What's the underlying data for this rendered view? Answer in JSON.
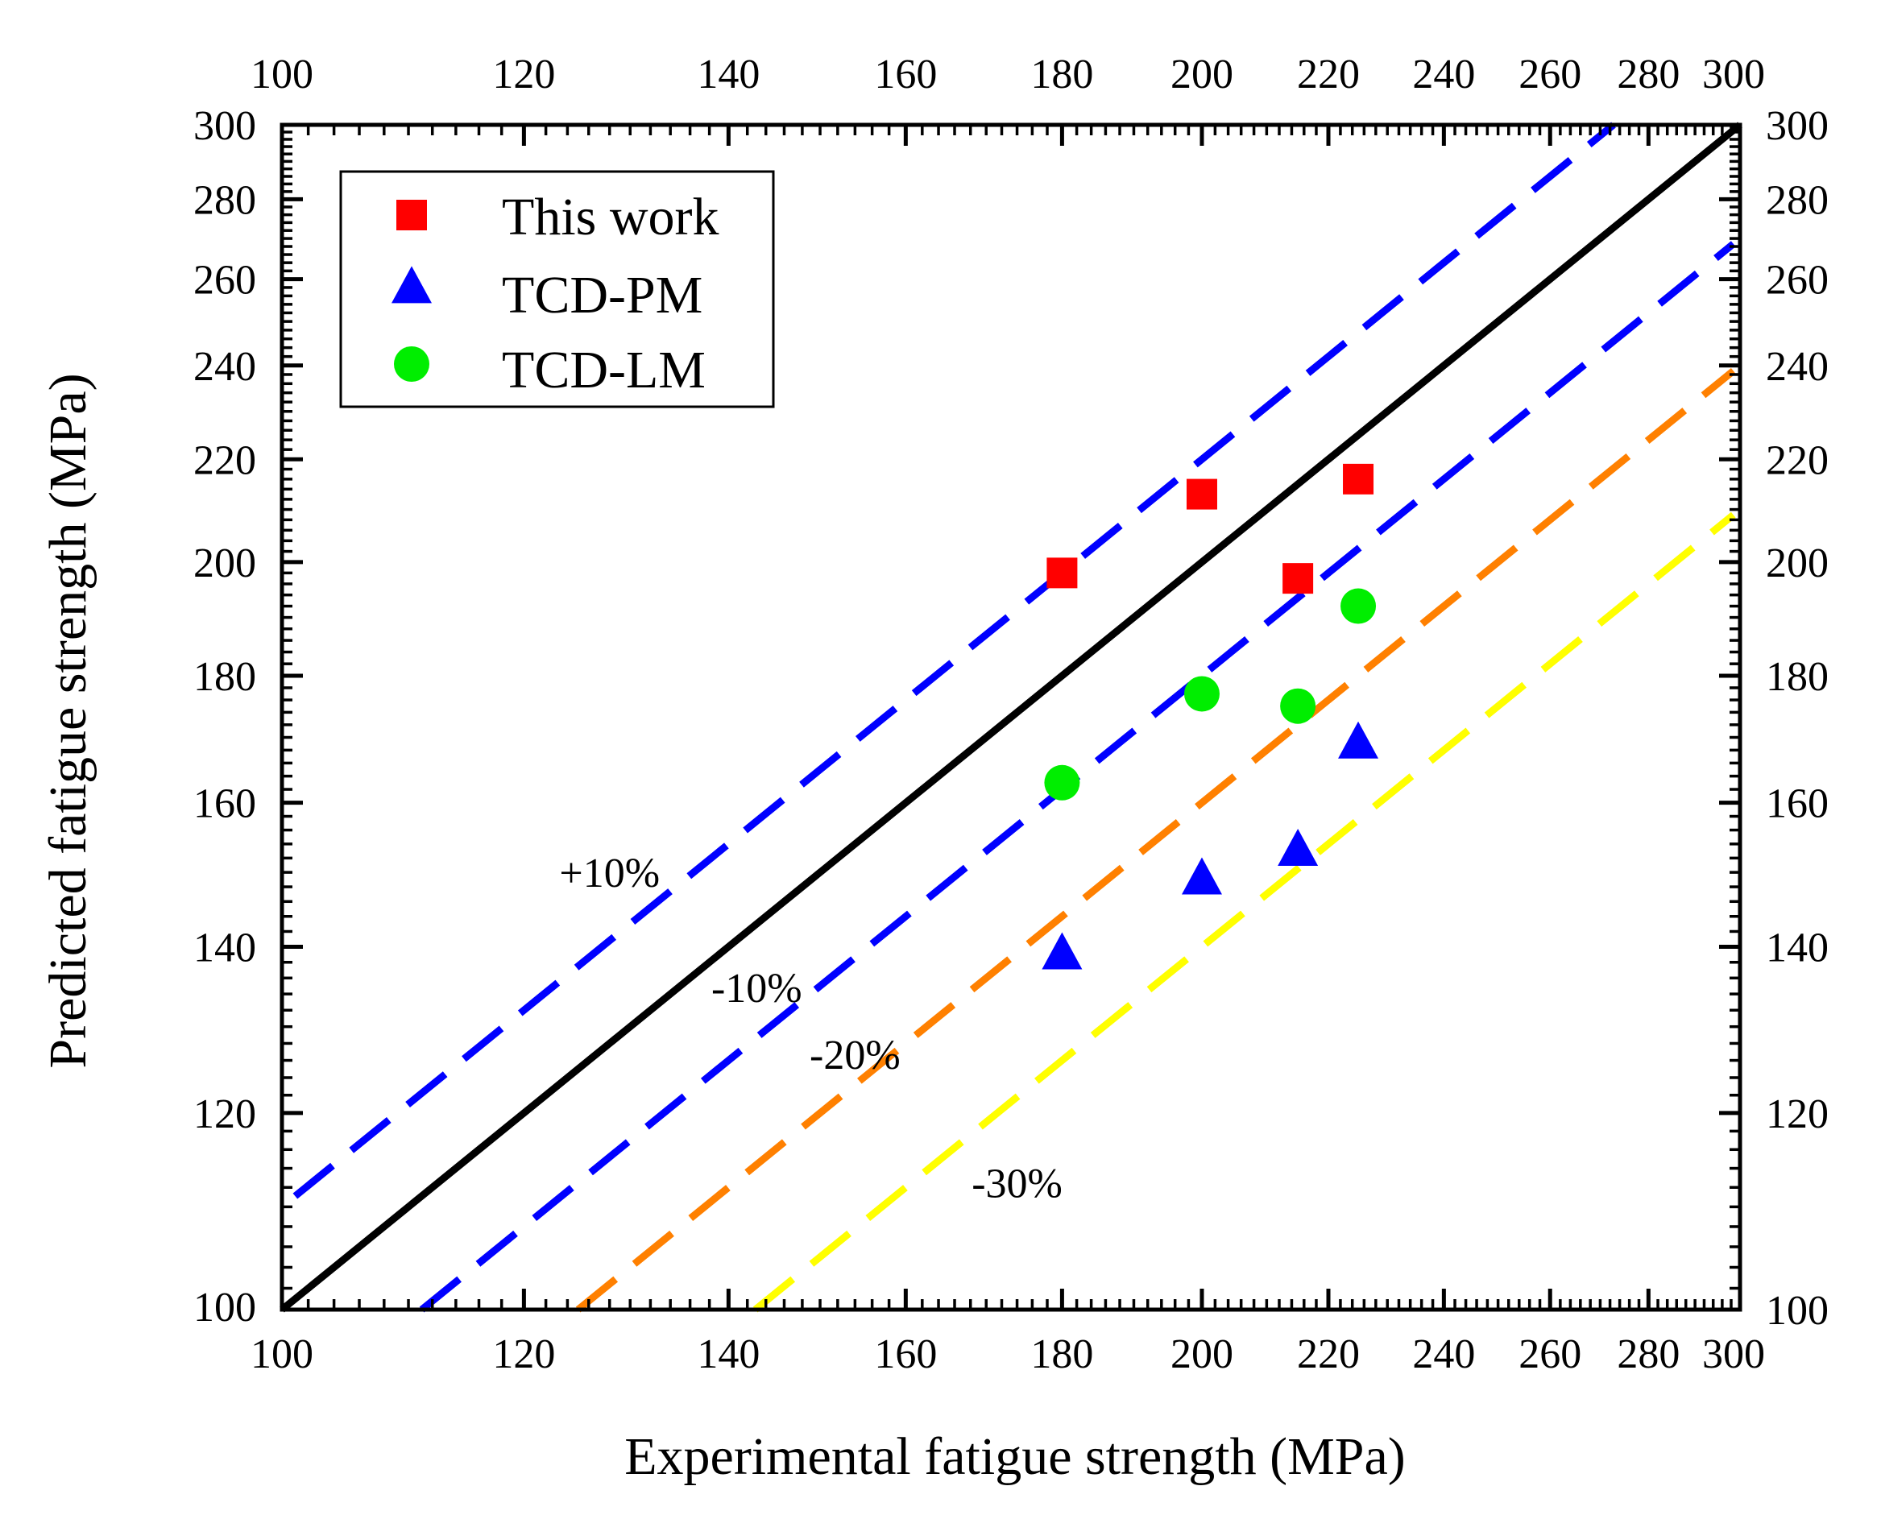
{
  "chart_data": {
    "type": "scatter",
    "scale": "log-log",
    "xlabel": "Experimental fatigue strength (MPa)",
    "ylabel": "Predicted fatigue strength (MPa)",
    "xlim": [
      100,
      300
    ],
    "ylim": [
      100,
      300
    ],
    "x_ticks": [
      100,
      120,
      140,
      160,
      180,
      200,
      220,
      240,
      260,
      280,
      300
    ],
    "y_ticks": [
      100,
      120,
      140,
      160,
      180,
      200,
      220,
      240,
      260,
      280,
      300
    ],
    "y_ticks_left": [
      100,
      120,
      140,
      160,
      180,
      200,
      220,
      240,
      260,
      280,
      300
    ],
    "legend_position": "top-left",
    "series": [
      {
        "name": "This work",
        "marker": "square",
        "color": "#ff0000",
        "points": [
          [
            180,
            198
          ],
          [
            200,
            213
          ],
          [
            215,
            197
          ],
          [
            225,
            216
          ]
        ]
      },
      {
        "name": "TCD-PM",
        "marker": "triangle",
        "color": "#0000ff",
        "points": [
          [
            180,
            139
          ],
          [
            200,
            149
          ],
          [
            215,
            153
          ],
          [
            225,
            169
          ]
        ]
      },
      {
        "name": "TCD-LM",
        "marker": "circle",
        "color": "#00ee00",
        "points": [
          [
            180,
            163
          ],
          [
            200,
            177
          ],
          [
            215,
            175
          ],
          [
            225,
            192
          ]
        ]
      }
    ],
    "reference_lines": [
      {
        "name": "1:1",
        "factor": 1.0,
        "color": "#000000",
        "style": "solid",
        "label": ""
      },
      {
        "name": "+10%",
        "factor": 1.1,
        "color": "#0000ff",
        "style": "dashed",
        "label": "+10%",
        "label_at": [
          128,
          148
        ]
      },
      {
        "name": "-10%",
        "factor": 0.9,
        "color": "#0000ff",
        "style": "dashed",
        "label": "-10%",
        "label_at": [
          143,
          133
        ]
      },
      {
        "name": "-20%",
        "factor": 0.8,
        "color": "#ff8000",
        "style": "dashed",
        "label": "-20%",
        "label_at": [
          154,
          125
        ]
      },
      {
        "name": "-30%",
        "factor": 0.7,
        "color": "#ffff00",
        "style": "dashed",
        "label": "-30%",
        "label_at": [
          174,
          111
        ]
      }
    ]
  }
}
